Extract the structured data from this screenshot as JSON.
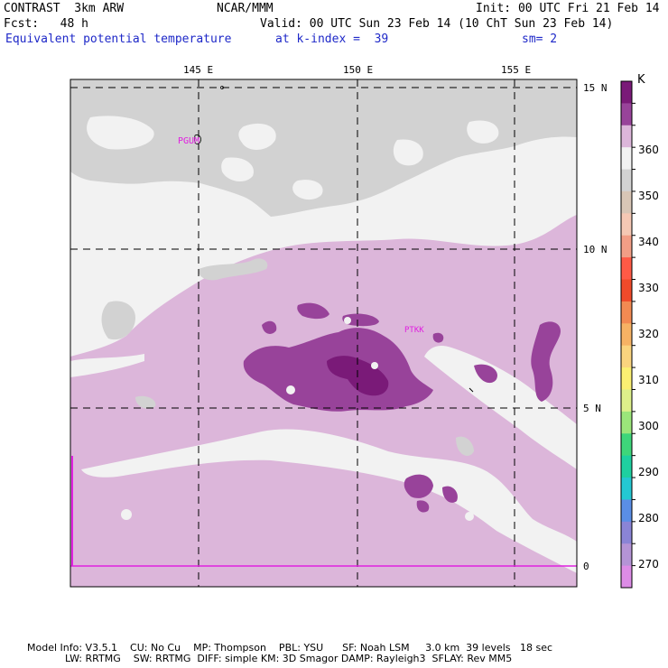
{
  "header": {
    "line1_left": "CONTRAST  3km ARW",
    "line1_center": "NCAR/MMM",
    "line1_right": "Init: 00 UTC Fri 21 Feb 14",
    "line2_left": "Fcst:   48 h",
    "line2_right": "Valid: 00 UTC Sun 23 Feb 14 (10 ChT Sun 23 Feb 14)",
    "line3_field": "Equivalent potential temperature",
    "line3_level": "at k-index =  39",
    "line3_smooth": "sm= 2"
  },
  "map": {
    "lon_labels": [
      "145 E",
      "150 E",
      "155 E"
    ],
    "lat_labels": [
      "15 N",
      "10 N",
      "5 N",
      "0"
    ],
    "stations": [
      "PGUM",
      "PTKK"
    ]
  },
  "colorbar": {
    "unit": "K",
    "labels": [
      "360",
      "350",
      "340",
      "330",
      "320",
      "310",
      "300",
      "290",
      "280",
      "270"
    ],
    "colors": [
      "#7a1a78",
      "#98439a",
      "#dcb6da",
      "#f2f2f2",
      "#d2d2d2",
      "#d8c6b6",
      "#f5c8b4",
      "#f29e86",
      "#ff5a46",
      "#f04a2a",
      "#f28a52",
      "#f6b264",
      "#fad47e",
      "#fbf072",
      "#ddf08a",
      "#9be67a",
      "#3ed67a",
      "#1ed0a0",
      "#24c8d2",
      "#5a8ee6",
      "#8a84d6",
      "#b494d6",
      "#dc8ce6"
    ]
  },
  "footer": {
    "line1": "Model Info: V3.5.1    CU: No Cu    MP: Thompson    PBL: YSU      SF: Noah LSM     3.0 km  39 levels   18 sec",
    "line2": "            LW: RRTMG    SW: RRTMG  DIFF: simple KM: 3D Smagor DAMP: Rayleigh3  SFLAY: Rev MM5"
  }
}
